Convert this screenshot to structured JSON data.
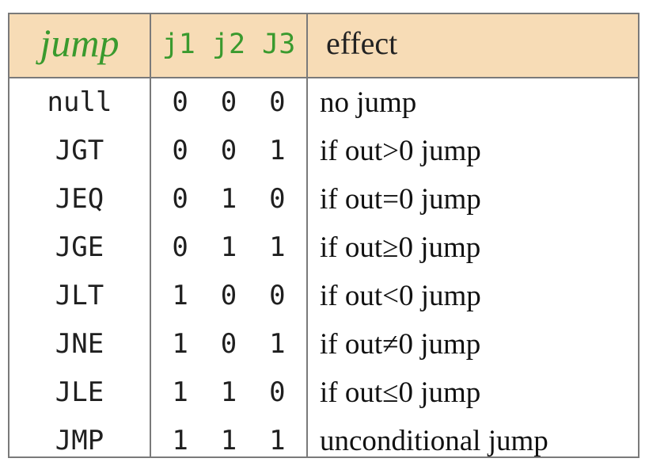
{
  "header": {
    "jump": "jump",
    "bits": "j1 j2 J3",
    "effect": "effect"
  },
  "rows": [
    {
      "mnemonic": "null",
      "bits": "0  0  0",
      "effect": "no jump"
    },
    {
      "mnemonic": "JGT",
      "bits": "0  0  1",
      "effect": "if out>0 jump"
    },
    {
      "mnemonic": "JEQ",
      "bits": "0  1  0",
      "effect": "if out=0 jump"
    },
    {
      "mnemonic": "JGE",
      "bits": "0  1  1",
      "effect": "if out≥0 jump"
    },
    {
      "mnemonic": "JLT",
      "bits": "1  0  0",
      "effect": "if out<0 jump"
    },
    {
      "mnemonic": "JNE",
      "bits": "1  0  1",
      "effect": "if out≠0 jump"
    },
    {
      "mnemonic": "JLE",
      "bits": "1  1  0",
      "effect": "if out≤0 jump"
    },
    {
      "mnemonic": "JMP",
      "bits": "1  1  1",
      "effect": "unconditional jump"
    }
  ],
  "colors": {
    "header_background": "#f7dcb6",
    "header_green": "#3a9a2e",
    "border": "#7a7a7a"
  }
}
